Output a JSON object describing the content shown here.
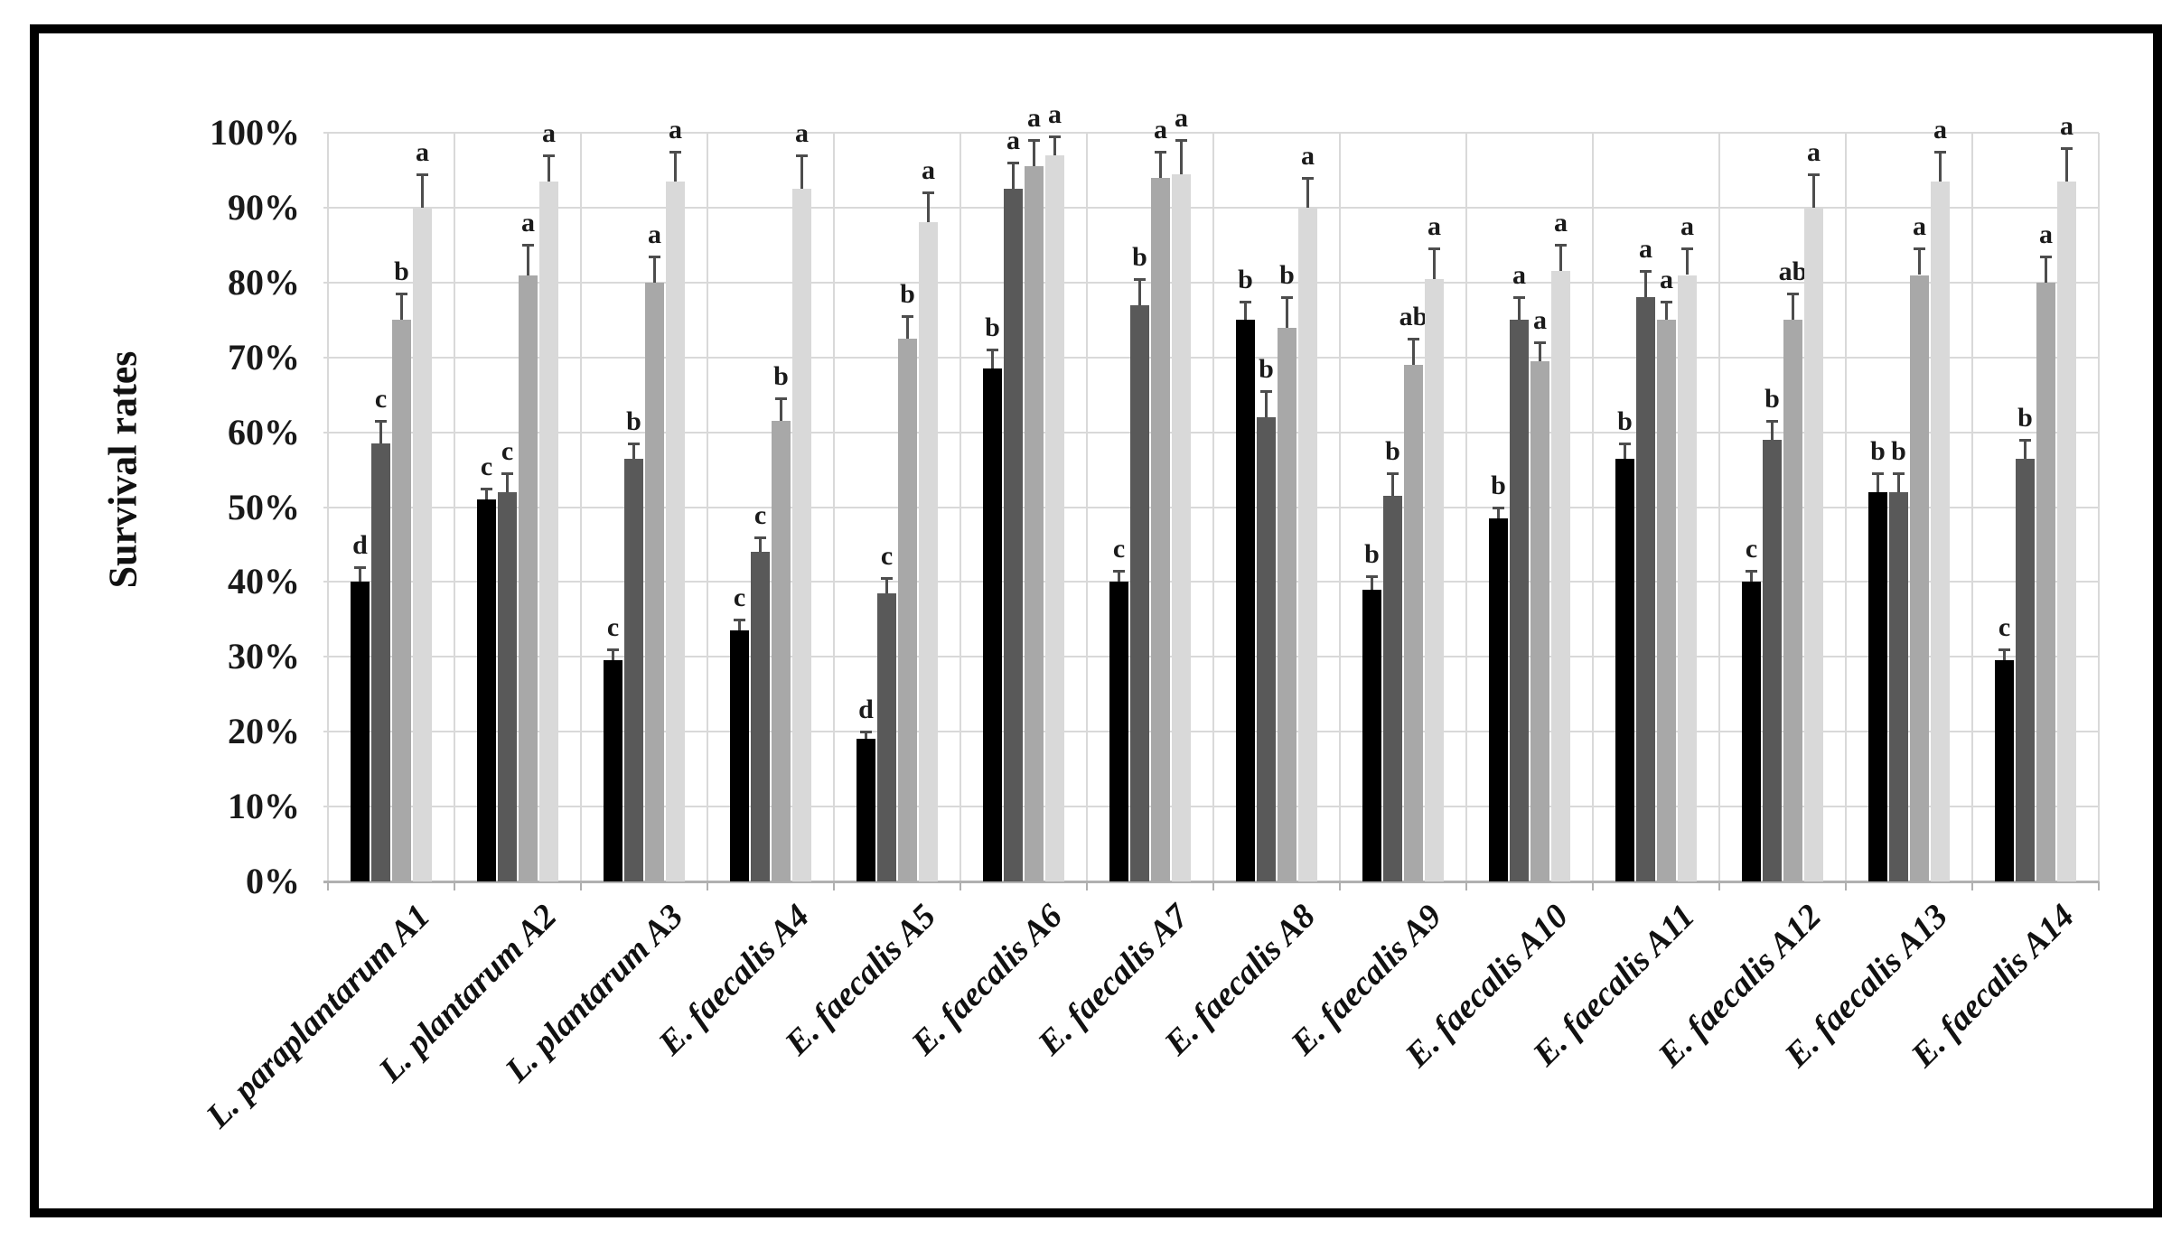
{
  "figure": {
    "background": "#ffffff",
    "border_color": "#000000"
  },
  "chart_data": {
    "type": "bar",
    "title": "",
    "ylabel": "Survival rates",
    "xlabel": "",
    "ylim": [
      0,
      100
    ],
    "yticks": [
      "0%",
      "10%",
      "20%",
      "30%",
      "40%",
      "50%",
      "60%",
      "70%",
      "80%",
      "90%",
      "100%"
    ],
    "grid": true,
    "legend": "none",
    "error_bars": true,
    "categories": [
      "L. paraplantarum A1",
      "L. plantarum A2",
      "L. plantarum A3",
      "E. faecalis A4",
      "E. faecalis A5",
      "E. faecalis A6",
      "E. faecalis A7",
      "E. faecalis A8",
      "E. faecalis A9",
      "E. faecalis A10",
      "E. faecalis A11",
      "E. faecalis A12",
      "E. faecalis A13",
      "E. faecalis A14"
    ],
    "series": [
      {
        "name": "series-1-black",
        "color": "#000000",
        "values": [
          40,
          51,
          29.5,
          33.5,
          19,
          68.5,
          40,
          75,
          39,
          48.5,
          56.5,
          40,
          52,
          29.5
        ],
        "errors": [
          2,
          1.5,
          1.5,
          1.5,
          1,
          2.5,
          1.5,
          2.5,
          1.8,
          1.5,
          2,
          1.5,
          2.5,
          1.5
        ],
        "sig_letters": [
          "d",
          "c",
          "c",
          "c",
          "d",
          "b",
          "c",
          "b",
          "b",
          "b",
          "b",
          "c",
          "b",
          "c"
        ]
      },
      {
        "name": "series-2-darkgray",
        "color": "#595959",
        "values": [
          58.5,
          52,
          56.5,
          44,
          38.5,
          92.5,
          77,
          62,
          51.5,
          75,
          78,
          59,
          52,
          56.5
        ],
        "errors": [
          3,
          2.5,
          2,
          2,
          2,
          3.5,
          3.5,
          3.5,
          3,
          3,
          3.5,
          2.5,
          2.5,
          2.5
        ],
        "sig_letters": [
          "c",
          "c",
          "b",
          "c",
          "c",
          "a",
          "b",
          "b",
          "b",
          "a",
          "a",
          "b",
          "b",
          "b"
        ]
      },
      {
        "name": "series-3-mediumgray",
        "color": "#a8a8a8",
        "values": [
          75,
          81,
          80,
          61.5,
          72.5,
          95.5,
          94,
          74,
          69,
          69.5,
          75,
          75,
          81,
          80
        ],
        "errors": [
          3.5,
          4,
          3.5,
          3,
          3,
          3.5,
          3.5,
          4,
          3.5,
          2.5,
          2.5,
          3.5,
          3.5,
          3.5
        ],
        "sig_letters": [
          "b",
          "a",
          "a",
          "b",
          "b",
          "a",
          "a",
          "b",
          "ab",
          "a",
          "a",
          "ab",
          "a",
          "a"
        ]
      },
      {
        "name": "series-4-lightgray",
        "color": "#d9d9d9",
        "values": [
          90,
          93.5,
          93.5,
          92.5,
          88,
          97,
          94.5,
          90,
          80.5,
          81.5,
          81,
          90,
          93.5,
          93.5
        ],
        "errors": [
          4.5,
          3.5,
          4,
          4.5,
          4,
          2.5,
          4.5,
          4,
          4,
          3.5,
          3.5,
          4.5,
          4,
          4.5
        ],
        "sig_letters": [
          "a",
          "a",
          "a",
          "a",
          "a",
          "a",
          "a",
          "a",
          "a",
          "a",
          "a",
          "a",
          "a",
          "a"
        ]
      }
    ],
    "gridline_color": "#d9d9d9",
    "axis_line_color": "#b0b0b0",
    "error_bar_color": "#4d4d4d",
    "text_color": "#1a1a1a"
  }
}
